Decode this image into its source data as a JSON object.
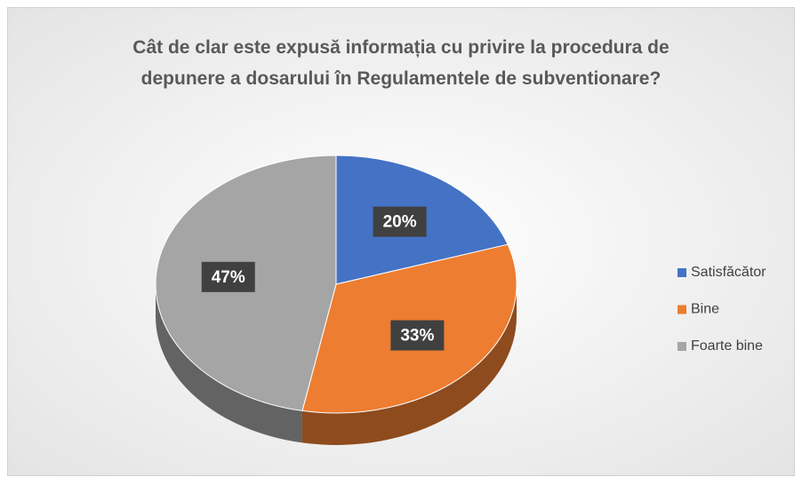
{
  "chart_data": {
    "type": "pie",
    "title": "Cât de clar este expusă informația cu privire la procedura de depunere a dosarului în Regulamentele de subventionare?",
    "categories": [
      "Satisfăcător",
      "Bine",
      "Foarte bine"
    ],
    "values": [
      20,
      33,
      47
    ],
    "value_labels": [
      "20%",
      "33%",
      "47%"
    ],
    "colors": [
      "#4472c4",
      "#ed7d31",
      "#a5a5a5"
    ],
    "legend": "right"
  }
}
